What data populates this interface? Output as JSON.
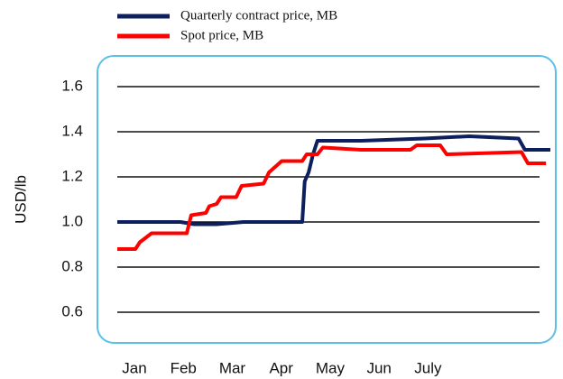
{
  "chart_data": {
    "type": "line",
    "ylabel": "USD/lb",
    "ylim": [
      0.6,
      1.6
    ],
    "yticks": [
      {
        "value": 0.6,
        "label": "0.6"
      },
      {
        "value": 0.8,
        "label": "0.8"
      },
      {
        "value": 1.0,
        "label": "1.0"
      },
      {
        "value": 1.2,
        "label": "1.2"
      },
      {
        "value": 1.4,
        "label": "1.4"
      },
      {
        "value": 1.6,
        "label": "1.6"
      }
    ],
    "xlim": [
      -0.35,
      8.5
    ],
    "xticks": [
      {
        "value": 0,
        "label": "Jan"
      },
      {
        "value": 1,
        "label": "Feb"
      },
      {
        "value": 2,
        "label": "Mar"
      },
      {
        "value": 3,
        "label": "Apr"
      },
      {
        "value": 4,
        "label": "May"
      },
      {
        "value": 5,
        "label": "Jun"
      },
      {
        "value": 6,
        "label": "July"
      }
    ],
    "grid": true,
    "series": [
      {
        "name": "Quarterly contract price, MB",
        "color": "#0d1f5c",
        "x": [
          -0.35,
          0.94,
          1.22,
          1.68,
          2.23,
          3.43,
          3.48,
          3.56,
          3.65,
          3.74,
          4.63,
          5.92,
          6.84,
          7.85,
          7.98,
          8.5
        ],
        "values": [
          1.0,
          1.0,
          0.99,
          0.99,
          1.0,
          1.0,
          1.18,
          1.22,
          1.3,
          1.36,
          1.36,
          1.37,
          1.38,
          1.37,
          1.32,
          1.32
        ]
      },
      {
        "name": "Spot price, MB",
        "color": "#ff0000",
        "x": [
          -0.35,
          0.02,
          0.11,
          0.35,
          1.07,
          1.16,
          1.46,
          1.53,
          1.68,
          1.77,
          2.08,
          2.19,
          2.64,
          2.75,
          3.01,
          3.43,
          3.52,
          3.74,
          3.85,
          4.63,
          5.64,
          5.77,
          6.25,
          6.38,
          7.91,
          8.04,
          8.41
        ],
        "values": [
          0.88,
          0.88,
          0.91,
          0.95,
          0.95,
          1.03,
          1.04,
          1.07,
          1.08,
          1.11,
          1.11,
          1.16,
          1.17,
          1.22,
          1.27,
          1.27,
          1.3,
          1.3,
          1.33,
          1.32,
          1.32,
          1.34,
          1.34,
          1.3,
          1.31,
          1.26,
          1.26
        ]
      }
    ]
  }
}
